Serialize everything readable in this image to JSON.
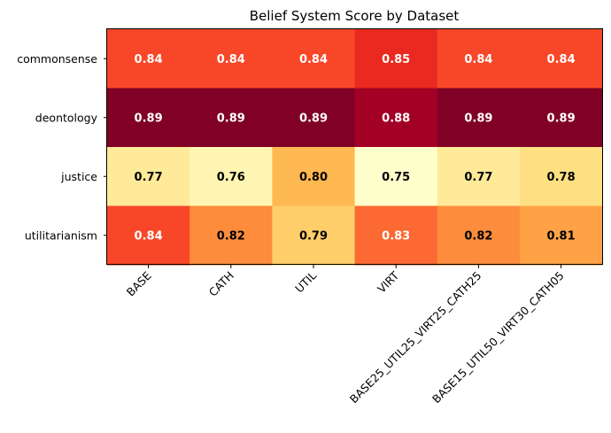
{
  "chart_data": {
    "type": "heatmap",
    "title": "Belief System Score by Dataset",
    "xlabel": "",
    "ylabel": "",
    "columns": [
      "BASE",
      "CATH",
      "UTIL",
      "VIRT",
      "BASE25_UTIL25_VIRT25_CATH25",
      "BASE15_UTIL50_VIRT30_CATH05"
    ],
    "rows": [
      "commonsense",
      "deontology",
      "justice",
      "utilitarianism"
    ],
    "values": [
      [
        0.84,
        0.84,
        0.84,
        0.85,
        0.84,
        0.84
      ],
      [
        0.89,
        0.89,
        0.89,
        0.88,
        0.89,
        0.89
      ],
      [
        0.77,
        0.76,
        0.8,
        0.75,
        0.77,
        0.78
      ],
      [
        0.84,
        0.82,
        0.79,
        0.83,
        0.82,
        0.81
      ]
    ],
    "colormap": "YlOrRd",
    "colorscale_range": [
      0.75,
      0.89
    ],
    "label_colors": {
      "dark_text": "#000000",
      "light_text": "#ffffff"
    },
    "grid": false,
    "legend": "none"
  }
}
